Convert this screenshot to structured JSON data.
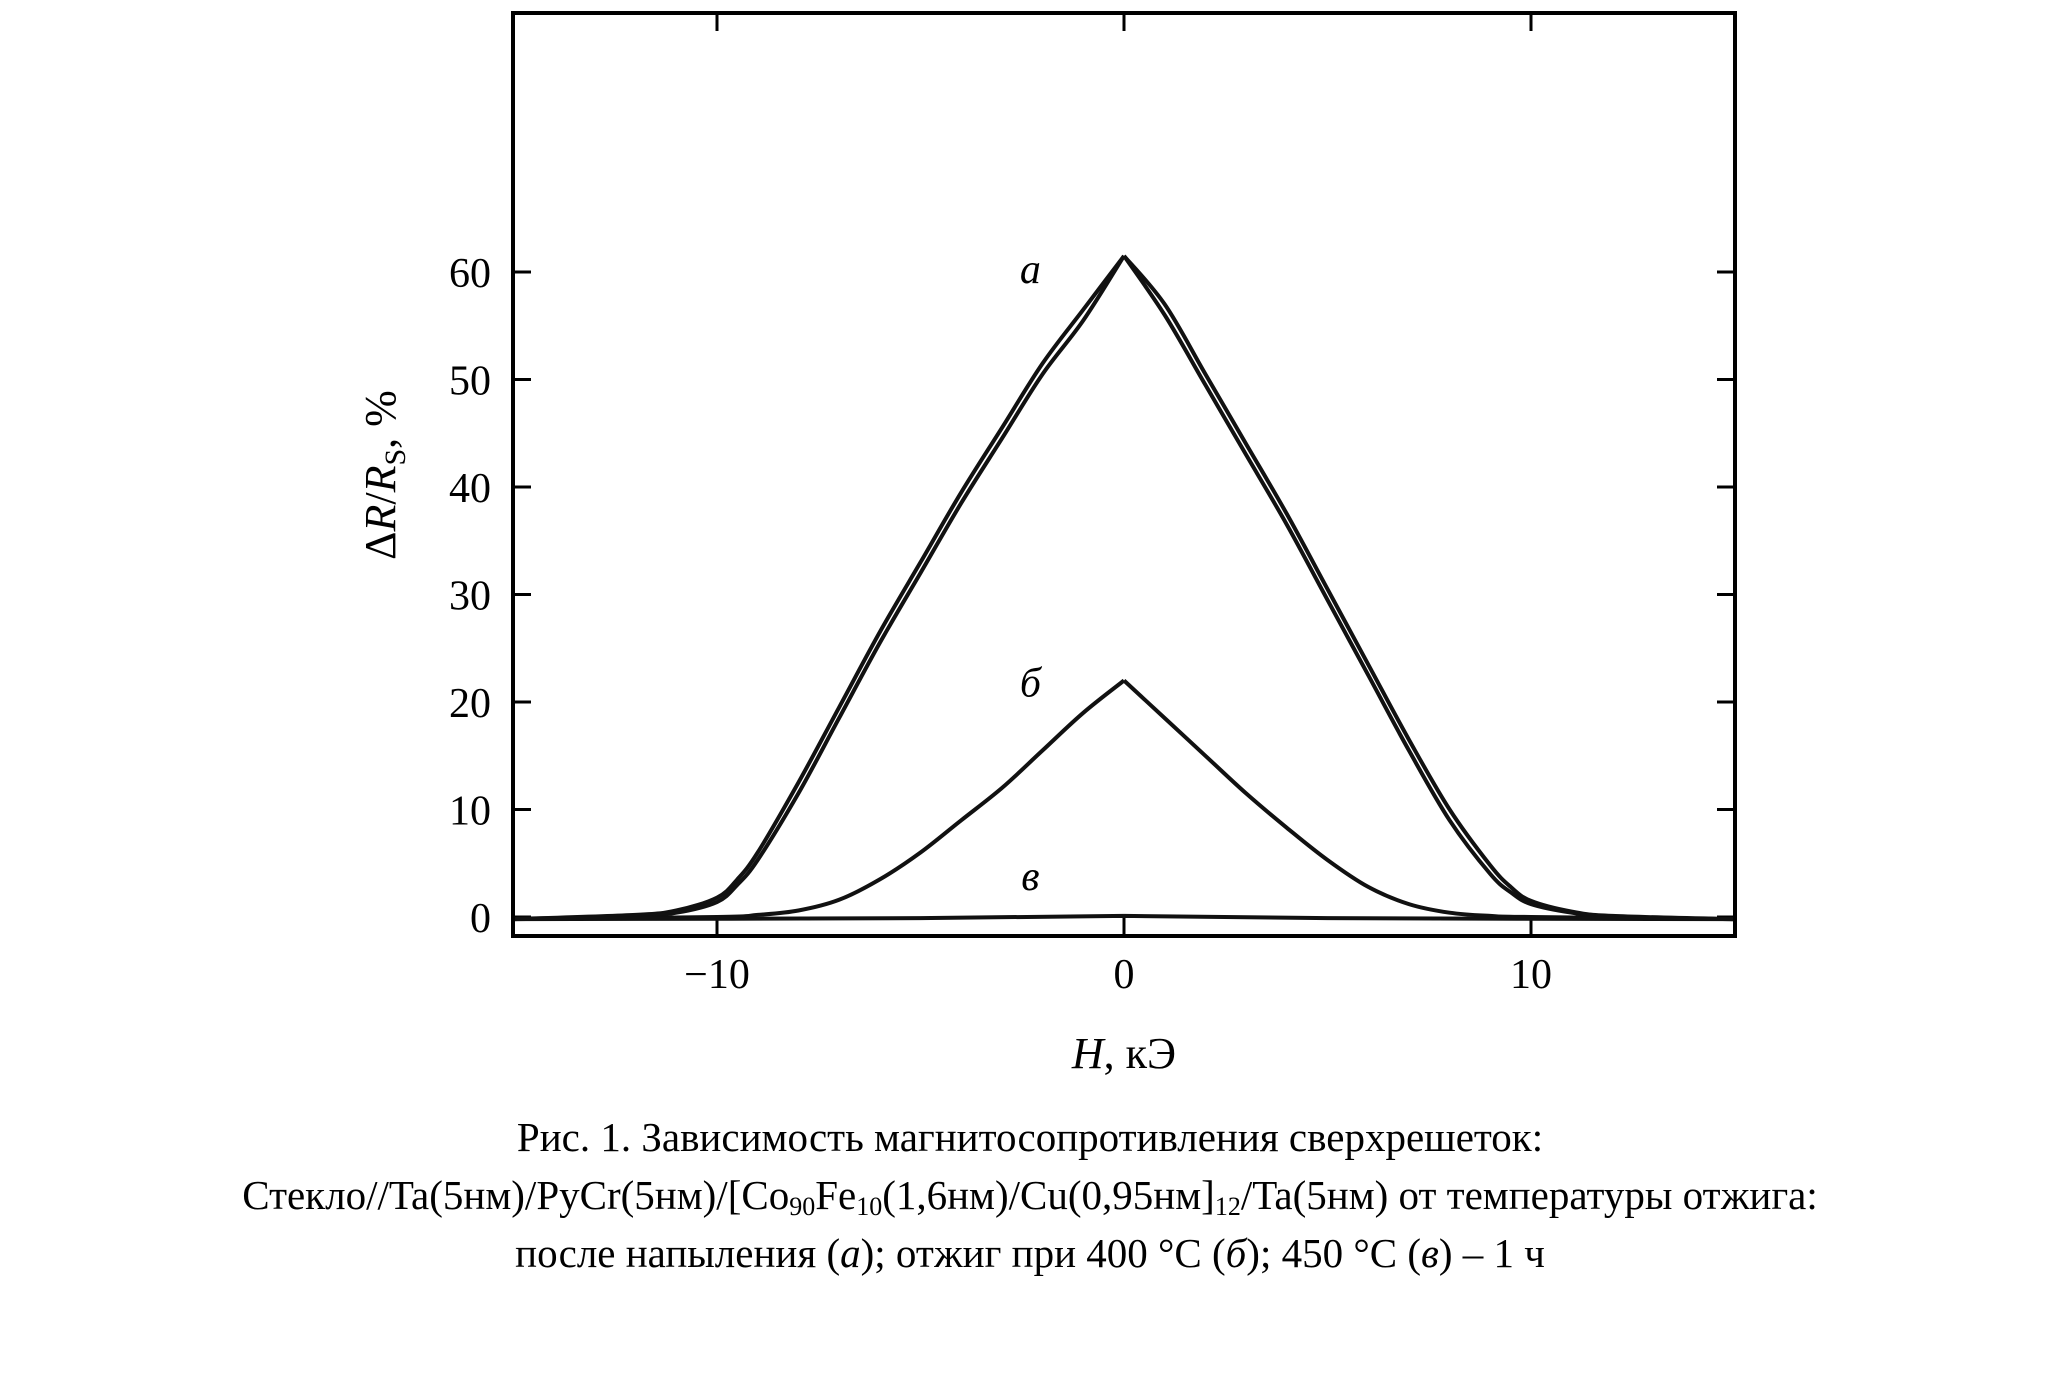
{
  "chart_data": {
    "type": "line",
    "xlabel": "H, кЭ",
    "ylabel": "ΔR/RS, %",
    "xlim": [
      -15,
      15
    ],
    "ylim": [
      -1,
      63
    ],
    "x_ticks": [
      -10,
      0,
      10
    ],
    "x_tick_labels": [
      "−10",
      "0",
      "10"
    ],
    "y_ticks": [
      0,
      10,
      20,
      30,
      40,
      50,
      60
    ],
    "y_tick_labels": [
      "0",
      "10",
      "20",
      "30",
      "40",
      "50",
      "60"
    ],
    "grid": false,
    "legend": "none",
    "series": [
      {
        "name": "а",
        "x": [
          -15,
          -12,
          -11,
          -10,
          -9.5,
          -9,
          -8,
          -7,
          -6,
          -5,
          -4,
          -3,
          -2,
          -1,
          0,
          1,
          2,
          3,
          4,
          5,
          6,
          7,
          8,
          9,
          9.5,
          10,
          11,
          12,
          15
        ],
        "y": [
          -0.2,
          0.2,
          0.6,
          1.8,
          3.5,
          6.0,
          12.5,
          19.5,
          26.5,
          33.0,
          39.5,
          45.5,
          51.5,
          56.5,
          61.5,
          56.0,
          49.5,
          43.0,
          36.5,
          29.5,
          22.5,
          15.5,
          9.0,
          4.0,
          2.3,
          1.2,
          0.4,
          0.0,
          -0.2
        ]
      },
      {
        "name": "а",
        "x": [
          -15,
          -12,
          -11,
          -10,
          -9.5,
          -9,
          -8,
          -7,
          -6,
          -5,
          -4,
          -3,
          -2,
          -1,
          0,
          1,
          2,
          3,
          4,
          5,
          6,
          7,
          8,
          9,
          9.5,
          10,
          11,
          12,
          15
        ],
        "y": [
          -0.2,
          0.1,
          0.4,
          1.4,
          3.0,
          5.3,
          11.5,
          18.5,
          25.5,
          32.0,
          38.5,
          44.5,
          50.5,
          55.5,
          61.5,
          57.0,
          50.5,
          44.0,
          37.5,
          30.5,
          23.5,
          16.5,
          10.0,
          4.8,
          2.8,
          1.5,
          0.5,
          0.1,
          -0.2
        ]
      },
      {
        "name": "б",
        "x": [
          -15,
          -10,
          -9,
          -8,
          -7,
          -6,
          -5,
          -4,
          -3,
          -2,
          -1,
          0,
          1,
          2,
          3,
          4,
          5,
          6,
          7,
          8,
          9,
          10,
          15
        ],
        "y": [
          -0.2,
          0.0,
          0.2,
          0.6,
          1.6,
          3.5,
          6.0,
          9.0,
          12.0,
          15.5,
          19.0,
          22.0,
          18.5,
          15.0,
          11.5,
          8.3,
          5.3,
          2.8,
          1.2,
          0.4,
          0.1,
          0.0,
          -0.2
        ]
      },
      {
        "name": "в",
        "x": [
          -15,
          -5,
          0,
          5,
          15
        ],
        "y": [
          -0.2,
          -0.1,
          0.1,
          -0.1,
          -0.2
        ]
      }
    ],
    "annotations": [
      {
        "text": "а",
        "x": -2.3,
        "y": 59
      },
      {
        "text": "б",
        "x": -2.3,
        "y": 20.5
      },
      {
        "text": "в",
        "x": -2.3,
        "y": 2.5
      }
    ]
  },
  "caption": {
    "line1": "Рис. 1. Зависимость магнитосопротивления сверхрешеток:",
    "line2_a": "Стекло//Ta(5нм)/PyCr(5нм)/[Co",
    "line2_sub1": "90",
    "line2_b": "Fe",
    "line2_sub2": "10",
    "line2_c": "(1,6нм)/Cu(0,95нм]",
    "line2_sub3": "12",
    "line2_d": "/Ta(5нм) от температуры отжига:",
    "line3_a": "после напыления (",
    "line3_i1": "а",
    "line3_b": "); отжиг при 400 °C (",
    "line3_i2": "б",
    "line3_c": "); 450 °C (",
    "line3_i3": "в",
    "line3_d": ") – 1 ч"
  }
}
